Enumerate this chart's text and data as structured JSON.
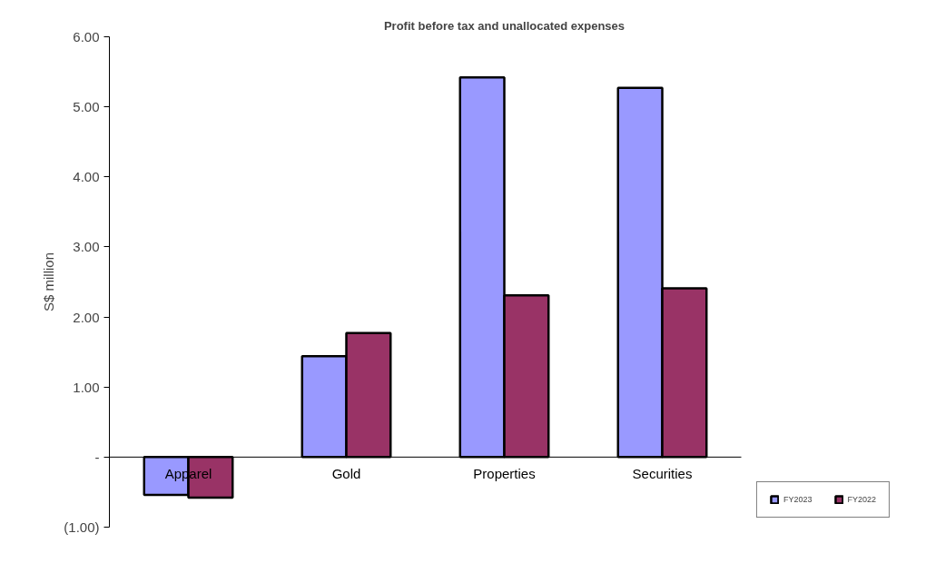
{
  "chart_data": {
    "type": "bar",
    "title": "Profit before tax and unallocated expenses",
    "ylabel": "S$ million",
    "categories": [
      "Apparel",
      "Gold",
      "Properties",
      "Securities"
    ],
    "series": [
      {
        "name": "FY2023",
        "color": "#9999ff",
        "values": [
          -0.54,
          1.44,
          5.42,
          5.27
        ]
      },
      {
        "name": "FY2022",
        "color": "#993366",
        "values": [
          -0.58,
          1.77,
          2.31,
          2.41
        ]
      }
    ],
    "ylim": [
      -1,
      6
    ],
    "yticks": [
      {
        "value": -1,
        "label": "(1.00)"
      },
      {
        "value": 0,
        "label": "-"
      },
      {
        "value": 1,
        "label": "1.00"
      },
      {
        "value": 2,
        "label": "2.00"
      },
      {
        "value": 3,
        "label": "3.00"
      },
      {
        "value": 4,
        "label": "4.00"
      },
      {
        "value": 5,
        "label": "5.00"
      },
      {
        "value": 6,
        "label": "6.00"
      }
    ],
    "grid": false,
    "legend": "bottom right"
  }
}
